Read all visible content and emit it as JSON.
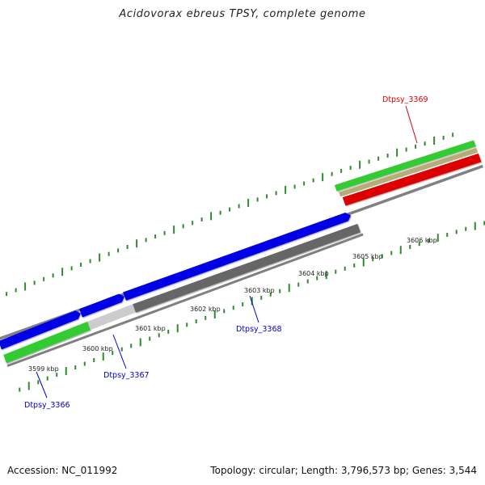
{
  "title": "Acidovorax ebreus TPSY, complete genome",
  "footer": {
    "accession": "Accession: NC_011992",
    "summary": "Topology: circular; Length: 3,796,573 bp; Genes: 3,544"
  },
  "colors": {
    "forward_cds": "#0000e6",
    "reverse_cds": "#dd0000",
    "gene_track_green": "#33cc33",
    "gene_track_tan": "#b5ac77",
    "backbone": "#808080",
    "highlight_gray": "#cccccc",
    "dark_gray": "#666666",
    "tick_green": "#2e8b2e",
    "label_forward": "#0000cc",
    "label_reverse": "#dd0000"
  },
  "scale_labels": [
    "3599 kbp",
    "3600 kbp",
    "3601 kbp",
    "3602 kbp",
    "3603 kbp",
    "3604 kbp",
    "3605 kbp",
    "3606 kbp"
  ],
  "gene_labels": [
    {
      "text": "Dtpsy_3366",
      "strand": "forward"
    },
    {
      "text": "Dtpsy_3367",
      "strand": "forward"
    },
    {
      "text": "Dtpsy_3368",
      "strand": "forward"
    },
    {
      "text": "Dtpsy_3369",
      "strand": "reverse"
    }
  ]
}
